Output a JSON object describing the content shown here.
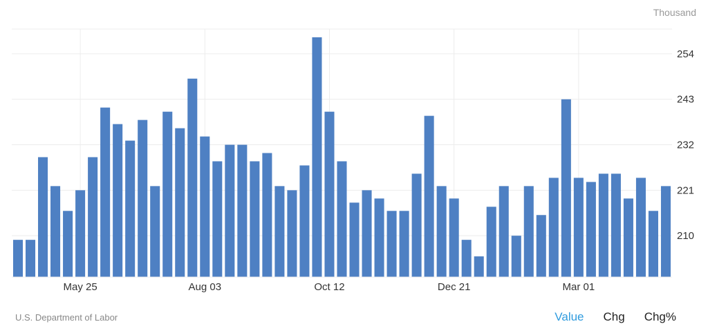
{
  "chart_data": {
    "type": "bar",
    "unit_label": "Thousand",
    "ylim": [
      200,
      260
    ],
    "yticks": [
      210,
      221,
      232,
      243,
      254
    ],
    "x_labels": [
      "May 25",
      "Aug 03",
      "Oct 12",
      "Dec 21",
      "Mar 01"
    ],
    "x_label_positions": [
      5,
      15,
      25,
      35,
      45
    ],
    "values": [
      209,
      209,
      229,
      222,
      216,
      221,
      229,
      241,
      237,
      233,
      238,
      222,
      240,
      236,
      248,
      234,
      228,
      232,
      232,
      228,
      230,
      222,
      221,
      227,
      258,
      240,
      228,
      218,
      221,
      219,
      216,
      216,
      225,
      239,
      222,
      219,
      209,
      205,
      217,
      222,
      210,
      222,
      215,
      224,
      243,
      224,
      223,
      225,
      225,
      219,
      224,
      216,
      222
    ],
    "bar_color": "#4e80c3",
    "grid": true
  },
  "footer": {
    "source": "U.S. Department of Labor",
    "toggles": [
      {
        "label": "Value",
        "active": true
      },
      {
        "label": "Chg",
        "active": false
      },
      {
        "label": "Chg%",
        "active": false
      }
    ]
  }
}
